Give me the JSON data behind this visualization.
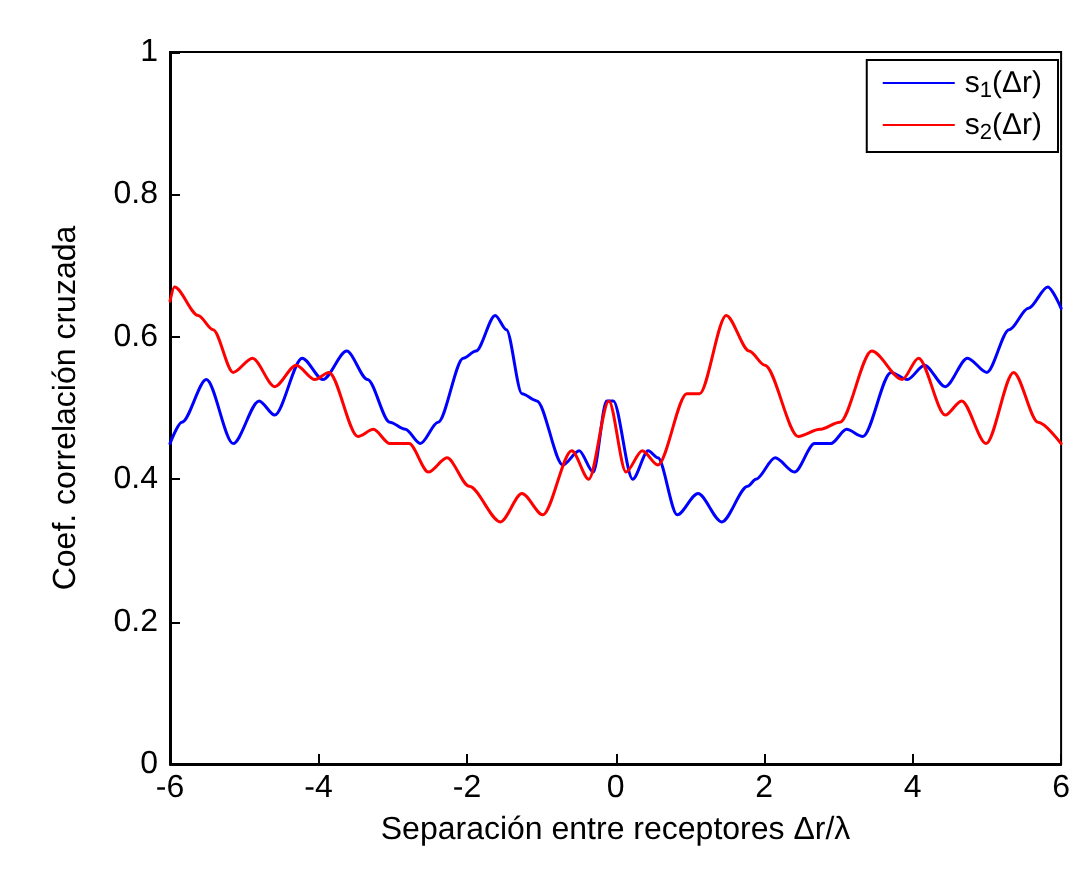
{
  "chart_data": {
    "type": "line",
    "xlabel": "Separación entre receptores Δr/λ",
    "ylabel": "Coef. correlación cruzada",
    "xlim": [
      -6,
      6
    ],
    "xticks": [
      -6,
      -4,
      -2,
      0,
      2,
      4,
      6
    ],
    "ylim": [
      0,
      1
    ],
    "yticks": [
      0,
      0.2,
      0.4,
      0.6,
      0.8,
      1
    ],
    "grid": false,
    "legend": "top right",
    "marker": "none",
    "line_style": "solid",
    "series": [
      {
        "name": "s$_{1}$(Δr)",
        "color": "#0000ff",
        "x": [
          -6,
          -5.84,
          -5.51,
          -5.15,
          -4.8,
          -4.59,
          -4.22,
          -3.94,
          -3.62,
          -3.34,
          -3.04,
          -2.83,
          -2.63,
          -2.39,
          -2.05,
          -1.88,
          -1.62,
          -1.47,
          -1.26,
          -1.06,
          -0.71,
          -0.49,
          -0.3,
          -0.12,
          -0.03,
          0.23,
          0.44,
          0.57,
          0.83,
          1.11,
          1.43,
          1.78,
          1.89,
          2.15,
          2.41,
          2.68,
          2.9,
          3.11,
          3.33,
          3.71,
          3.93,
          4.16,
          4.44,
          4.74,
          5.0,
          5.3,
          5.56,
          5.82,
          6
        ],
        "values": [
          0.45,
          0.48,
          0.54,
          0.45,
          0.51,
          0.49,
          0.57,
          0.54,
          0.58,
          0.54,
          0.48,
          0.47,
          0.45,
          0.48,
          0.57,
          0.58,
          0.63,
          0.61,
          0.52,
          0.51,
          0.42,
          0.44,
          0.41,
          0.51,
          0.51,
          0.4,
          0.44,
          0.43,
          0.35,
          0.38,
          0.34,
          0.39,
          0.4,
          0.43,
          0.41,
          0.45,
          0.45,
          0.47,
          0.46,
          0.55,
          0.54,
          0.56,
          0.53,
          0.57,
          0.55,
          0.61,
          0.64,
          0.67,
          0.64
        ]
      },
      {
        "name": "s$_{2}$(Δr)",
        "color": "#ff0000",
        "x": [
          -6,
          -5.94,
          -5.62,
          -5.42,
          -5.15,
          -4.89,
          -4.59,
          -4.3,
          -4.05,
          -3.86,
          -3.47,
          -3.26,
          -3.04,
          -2.78,
          -2.52,
          -2.27,
          -1.97,
          -1.55,
          -1.26,
          -0.98,
          -0.59,
          -0.36,
          -0.09,
          0.14,
          0.36,
          0.57,
          0.96,
          1.13,
          1.49,
          1.8,
          2.01,
          2.46,
          2.75,
          3.02,
          3.45,
          3.86,
          4.08,
          4.44,
          4.66,
          4.99,
          5.36,
          5.69,
          6
        ],
        "values": [
          0.65,
          0.67,
          0.63,
          0.61,
          0.55,
          0.57,
          0.53,
          0.56,
          0.54,
          0.55,
          0.46,
          0.47,
          0.45,
          0.45,
          0.41,
          0.43,
          0.39,
          0.34,
          0.38,
          0.35,
          0.44,
          0.4,
          0.51,
          0.41,
          0.44,
          0.42,
          0.52,
          0.52,
          0.63,
          0.58,
          0.56,
          0.46,
          0.47,
          0.48,
          0.58,
          0.54,
          0.57,
          0.49,
          0.51,
          0.45,
          0.55,
          0.48,
          0.45
        ]
      }
    ]
  }
}
